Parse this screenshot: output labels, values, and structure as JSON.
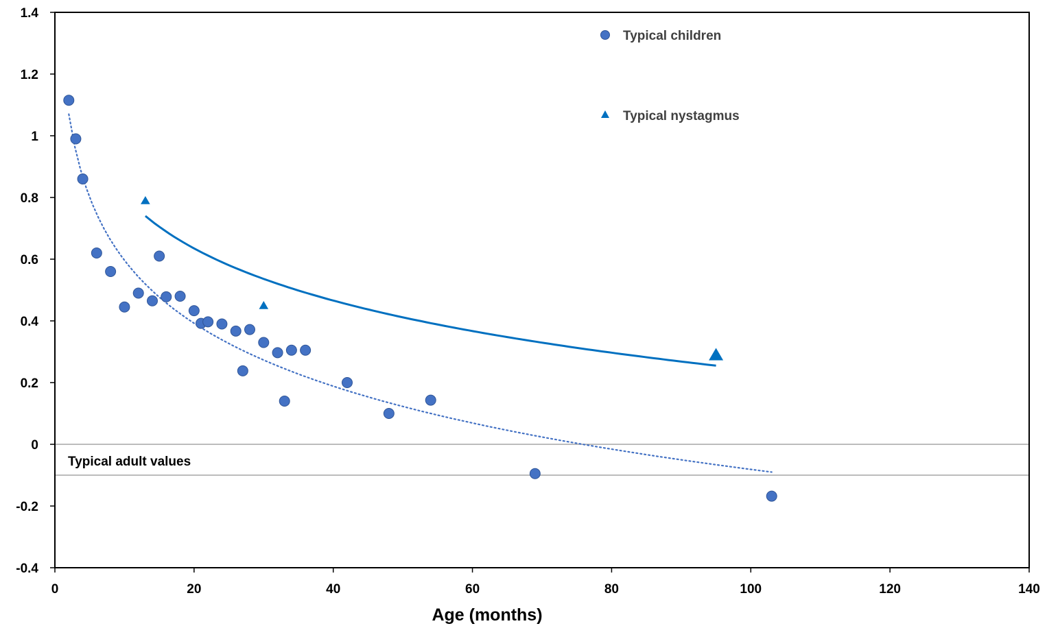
{
  "chart_data": {
    "type": "scatter",
    "xlabel": "Age (months)",
    "ylabel": "",
    "xlim": [
      0,
      140
    ],
    "ylim": [
      -0.4,
      1.4
    ],
    "x_ticks": [
      0,
      20,
      40,
      60,
      80,
      100,
      120,
      140
    ],
    "x_tick_labels": [
      "0",
      "20",
      "40",
      "60",
      "80",
      "100",
      "120",
      "140"
    ],
    "y_ticks": [
      -0.4,
      -0.2,
      0,
      0.2,
      0.4,
      0.6,
      0.8,
      1,
      1.2,
      1.4
    ],
    "y_tick_labels": [
      "-0.4",
      "-0.2",
      "0",
      "0.2",
      "0.4",
      "0.6",
      "0.8",
      "1",
      "1.2",
      "1.4"
    ],
    "grid": false,
    "legend_position": "top-right",
    "band": {
      "label": "Typical adult values",
      "y_range": [
        -0.1,
        0
      ]
    },
    "series": [
      {
        "name": "Typical children",
        "marker": "circle",
        "color": "#4472C4",
        "points": [
          [
            2,
            1.115
          ],
          [
            3,
            0.99
          ],
          [
            4,
            0.86
          ],
          [
            6,
            0.62
          ],
          [
            8,
            0.56
          ],
          [
            10,
            0.445
          ],
          [
            12,
            0.49
          ],
          [
            14,
            0.465
          ],
          [
            15,
            0.61
          ],
          [
            16,
            0.478
          ],
          [
            18,
            0.48
          ],
          [
            20,
            0.433
          ],
          [
            21,
            0.392
          ],
          [
            22,
            0.397
          ],
          [
            24,
            0.39
          ],
          [
            26,
            0.367
          ],
          [
            27,
            0.238
          ],
          [
            28,
            0.372
          ],
          [
            30,
            0.33
          ],
          [
            32,
            0.297
          ],
          [
            33,
            0.14
          ],
          [
            34,
            0.305
          ],
          [
            36,
            0.305
          ],
          [
            42,
            0.2
          ],
          [
            48,
            0.1
          ],
          [
            54,
            0.143
          ],
          [
            69,
            -0.095
          ],
          [
            103,
            -0.168
          ]
        ],
        "trendline": {
          "style": "dotted",
          "x_range": [
            2,
            103
          ],
          "y_at_start": 1.07,
          "y_at_end": -0.09
        }
      },
      {
        "name": "Typical nystagmus",
        "marker": "triangle",
        "color": "#0070C0",
        "points": [
          [
            13,
            0.79
          ],
          [
            30,
            0.45
          ],
          [
            95,
            0.29
          ]
        ],
        "trendline": {
          "style": "solid",
          "x_range": [
            13,
            95
          ],
          "y_at_start": 0.74,
          "y_at_end": 0.255
        }
      }
    ]
  }
}
